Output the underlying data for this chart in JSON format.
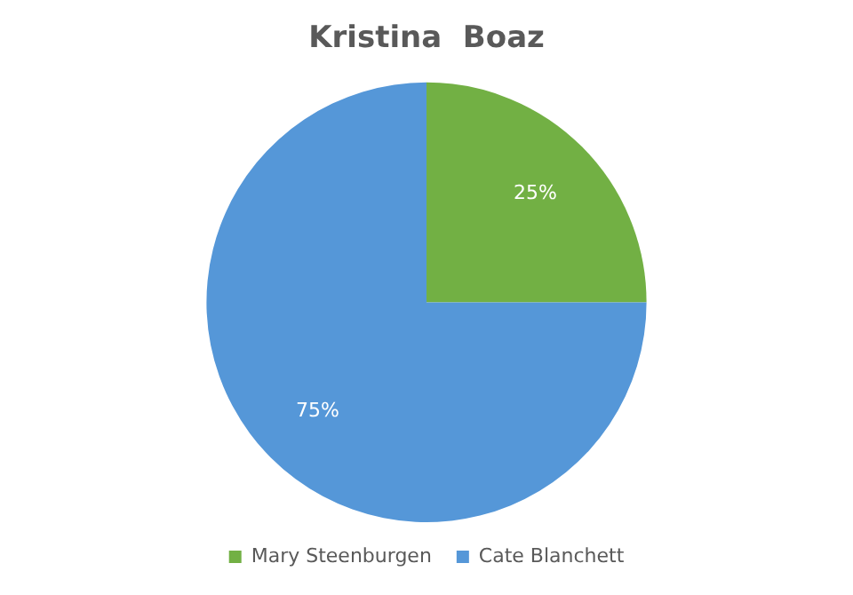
{
  "chart_data": {
    "type": "pie",
    "title": "Kristina  Boaz",
    "categories": [
      "Mary Steenburgen",
      "Cate Blanchett"
    ],
    "values": [
      25,
      75
    ],
    "colors": [
      "#72b044",
      "#5597d8"
    ],
    "value_labels": [
      "25%",
      "75%"
    ],
    "legend": "bottom"
  }
}
